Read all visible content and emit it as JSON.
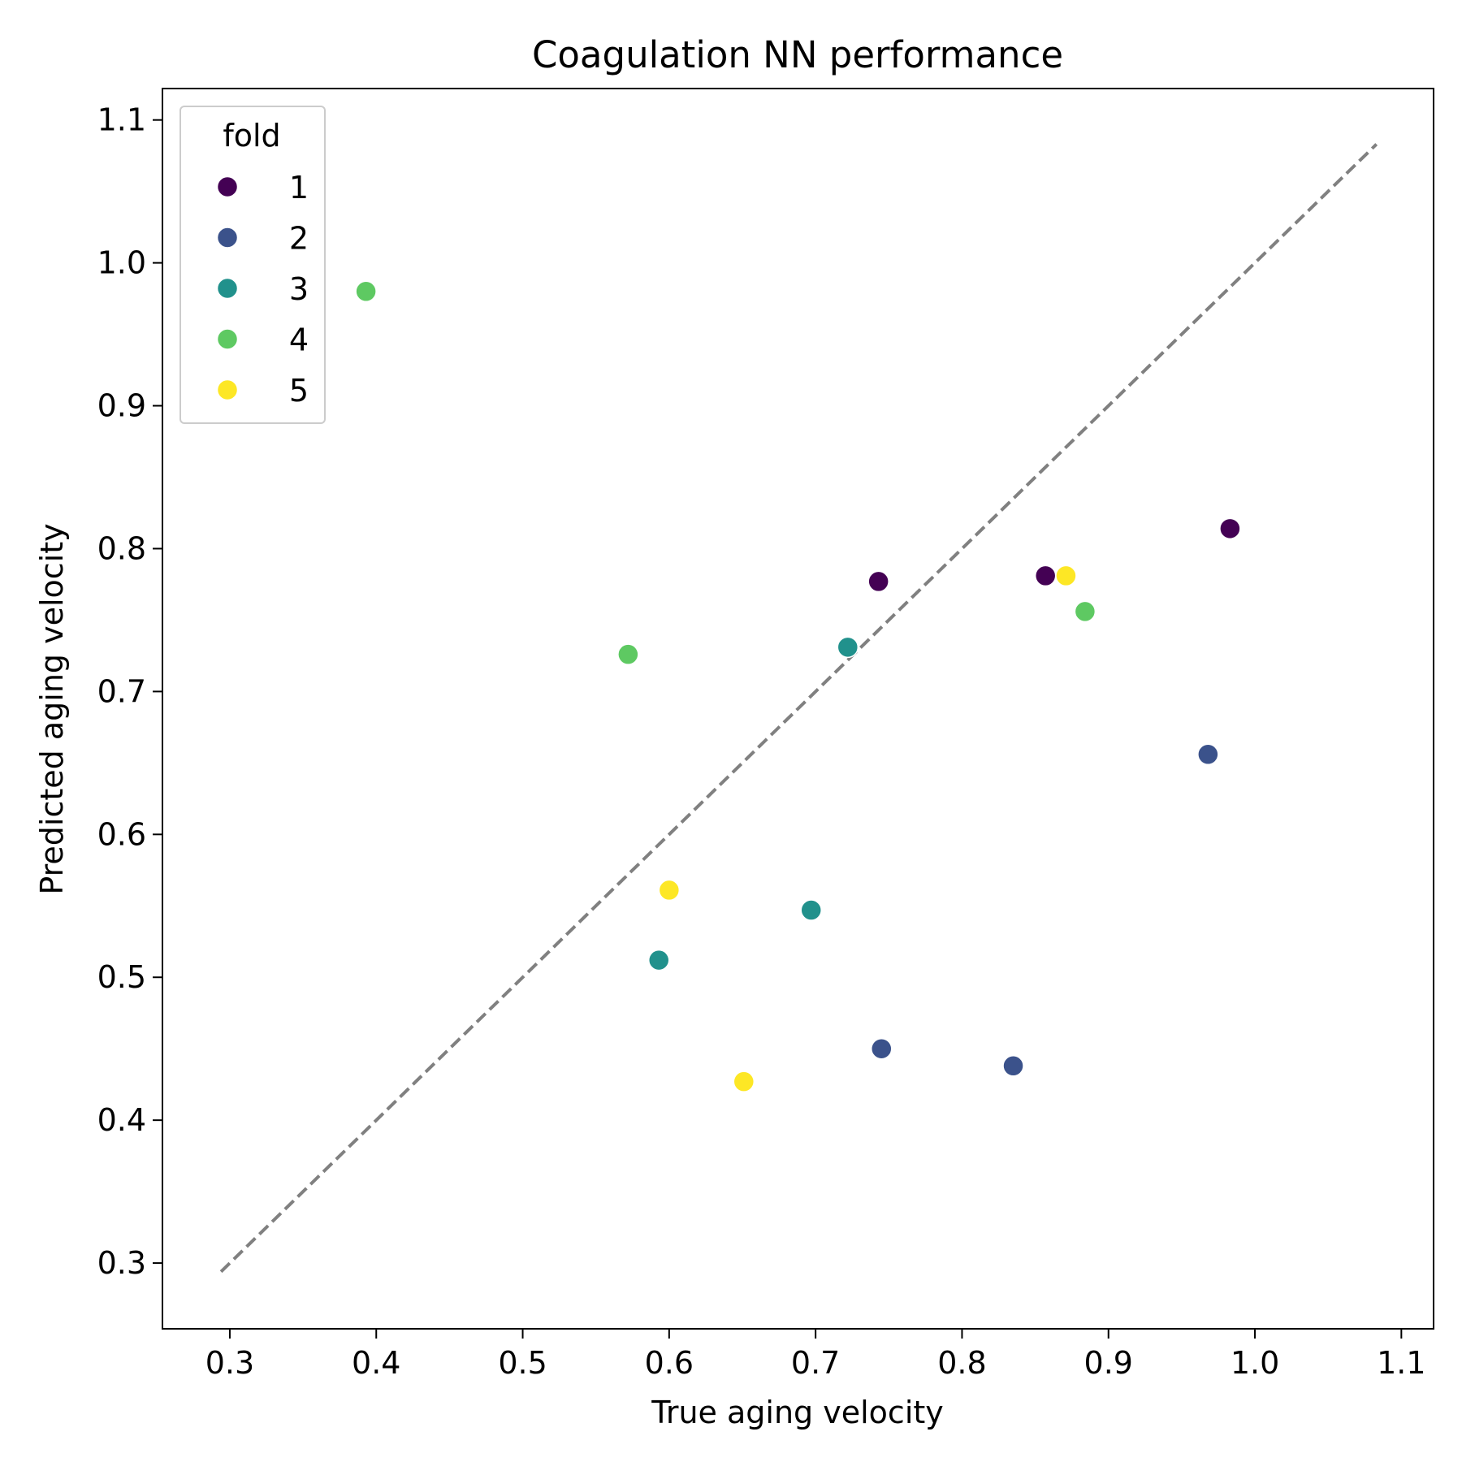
{
  "chart_data": {
    "type": "scatter",
    "title": "Coagulation NN performance",
    "xlabel": "True aging velocity",
    "ylabel": "Predicted aging velocity",
    "xlim": [
      0.254,
      1.122
    ],
    "ylim": [
      0.254,
      1.122
    ],
    "xticks": [
      0.3,
      0.4,
      0.5,
      0.6,
      0.7,
      0.8,
      0.9,
      1.0,
      1.1
    ],
    "yticks": [
      0.3,
      0.4,
      0.5,
      0.6,
      0.7,
      0.8,
      0.9,
      1.0,
      1.1
    ],
    "xtick_labels": [
      "0.3",
      "0.4",
      "0.5",
      "0.6",
      "0.7",
      "0.8",
      "0.9",
      "1.0",
      "1.1"
    ],
    "ytick_labels": [
      "0.3",
      "0.4",
      "0.5",
      "0.6",
      "0.7",
      "0.8",
      "0.9",
      "1.0",
      "1.1"
    ],
    "grid": false,
    "legend": {
      "title": "fold",
      "placement": "top-left"
    },
    "reference_line": {
      "style": "dashed",
      "color": "#808080",
      "from": [
        0.294,
        0.294
      ],
      "to": [
        1.083,
        1.083
      ]
    },
    "series": [
      {
        "name": "1",
        "color": "#440154",
        "points": [
          [
            0.743,
            0.777
          ],
          [
            0.857,
            0.781
          ],
          [
            0.983,
            0.814
          ]
        ]
      },
      {
        "name": "2",
        "color": "#3b528b",
        "points": [
          [
            0.745,
            0.45
          ],
          [
            0.835,
            0.438
          ],
          [
            0.968,
            0.656
          ]
        ]
      },
      {
        "name": "3",
        "color": "#21918c",
        "points": [
          [
            0.593,
            0.512
          ],
          [
            0.697,
            0.547
          ],
          [
            0.722,
            0.731
          ]
        ]
      },
      {
        "name": "4",
        "color": "#5ec962",
        "points": [
          [
            0.393,
            0.98
          ],
          [
            0.572,
            0.726
          ],
          [
            0.884,
            0.756
          ]
        ]
      },
      {
        "name": "5",
        "color": "#fde725",
        "points": [
          [
            0.6,
            0.561
          ],
          [
            0.651,
            0.427
          ],
          [
            0.871,
            0.781
          ]
        ]
      }
    ]
  }
}
